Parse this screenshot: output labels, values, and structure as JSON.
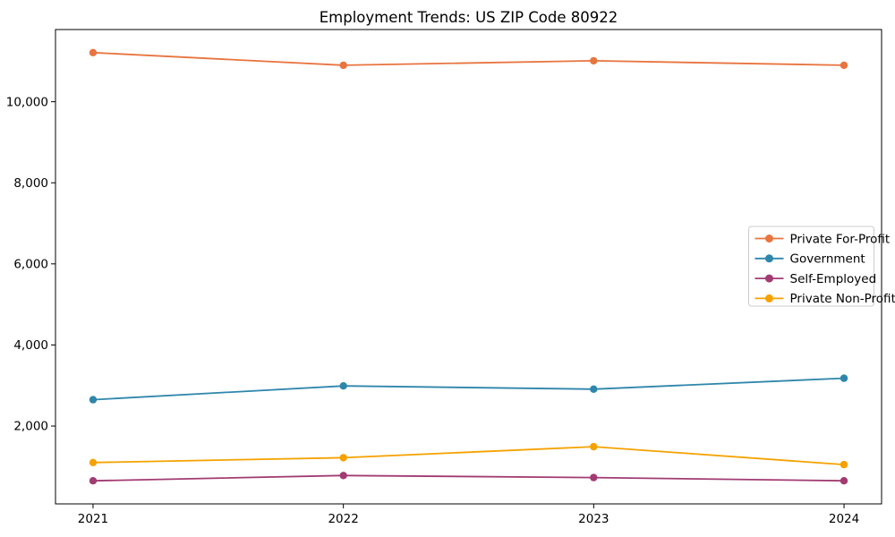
{
  "chart_data": {
    "type": "line",
    "title": "Employment Trends: US ZIP Code 80922",
    "xlabel": "",
    "ylabel": "",
    "x": [
      2021,
      2022,
      2023,
      2024
    ],
    "x_tick_labels": [
      "2021",
      "2022",
      "2023",
      "2024"
    ],
    "y_ticks": [
      2000,
      4000,
      6000,
      8000,
      10000
    ],
    "y_tick_labels": [
      "2,000",
      "4,000",
      "6,000",
      "8,000",
      "10,000"
    ],
    "xlim": [
      2020.85,
      2024.15
    ],
    "ylim": [
      80,
      11780
    ],
    "grid": false,
    "legend_position": "center right",
    "series": [
      {
        "name": "Private For-Profit",
        "color": "#e8743f",
        "values": [
          11210,
          10900,
          11010,
          10900
        ]
      },
      {
        "name": "Government",
        "color": "#2e86ab",
        "values": [
          2650,
          2990,
          2910,
          3180
        ]
      },
      {
        "name": "Self-Employed",
        "color": "#a23b72",
        "values": [
          650,
          780,
          730,
          650
        ]
      },
      {
        "name": "Private Non-Profit",
        "color": "#f5a200",
        "values": [
          1100,
          1220,
          1490,
          1050
        ]
      }
    ],
    "axis_color": "#000000",
    "background_color": "#ffffff",
    "legend_border_color": "#cccccc"
  }
}
